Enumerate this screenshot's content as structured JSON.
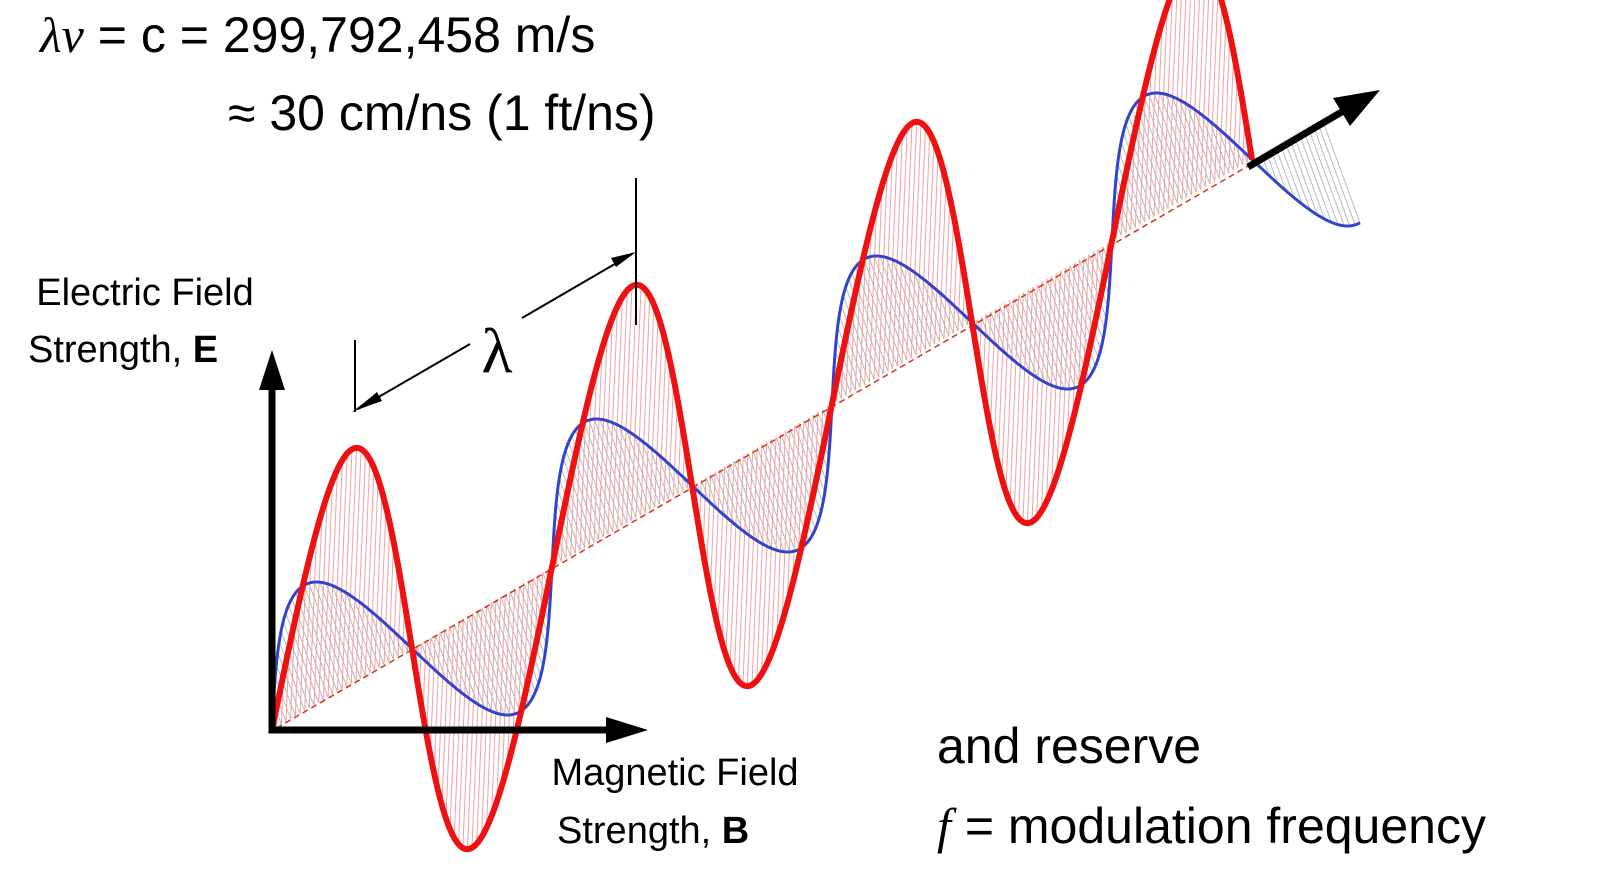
{
  "equation": {
    "symbol": "λν",
    "rhs": "= c = 299,792,458 m/s",
    "approx": "≈ 30 cm/ns (1 ft/ns)"
  },
  "wavelength_label": "λ",
  "electric_axis": {
    "line1": "Electric Field",
    "line2": "Strength,",
    "symbol": "E"
  },
  "magnetic_axis": {
    "line1": "Magnetic Field",
    "line2": "Strength,",
    "symbol": "B"
  },
  "note": {
    "line1": "and reserve",
    "symbol": "f",
    "line2": "= modulation frequency"
  }
}
